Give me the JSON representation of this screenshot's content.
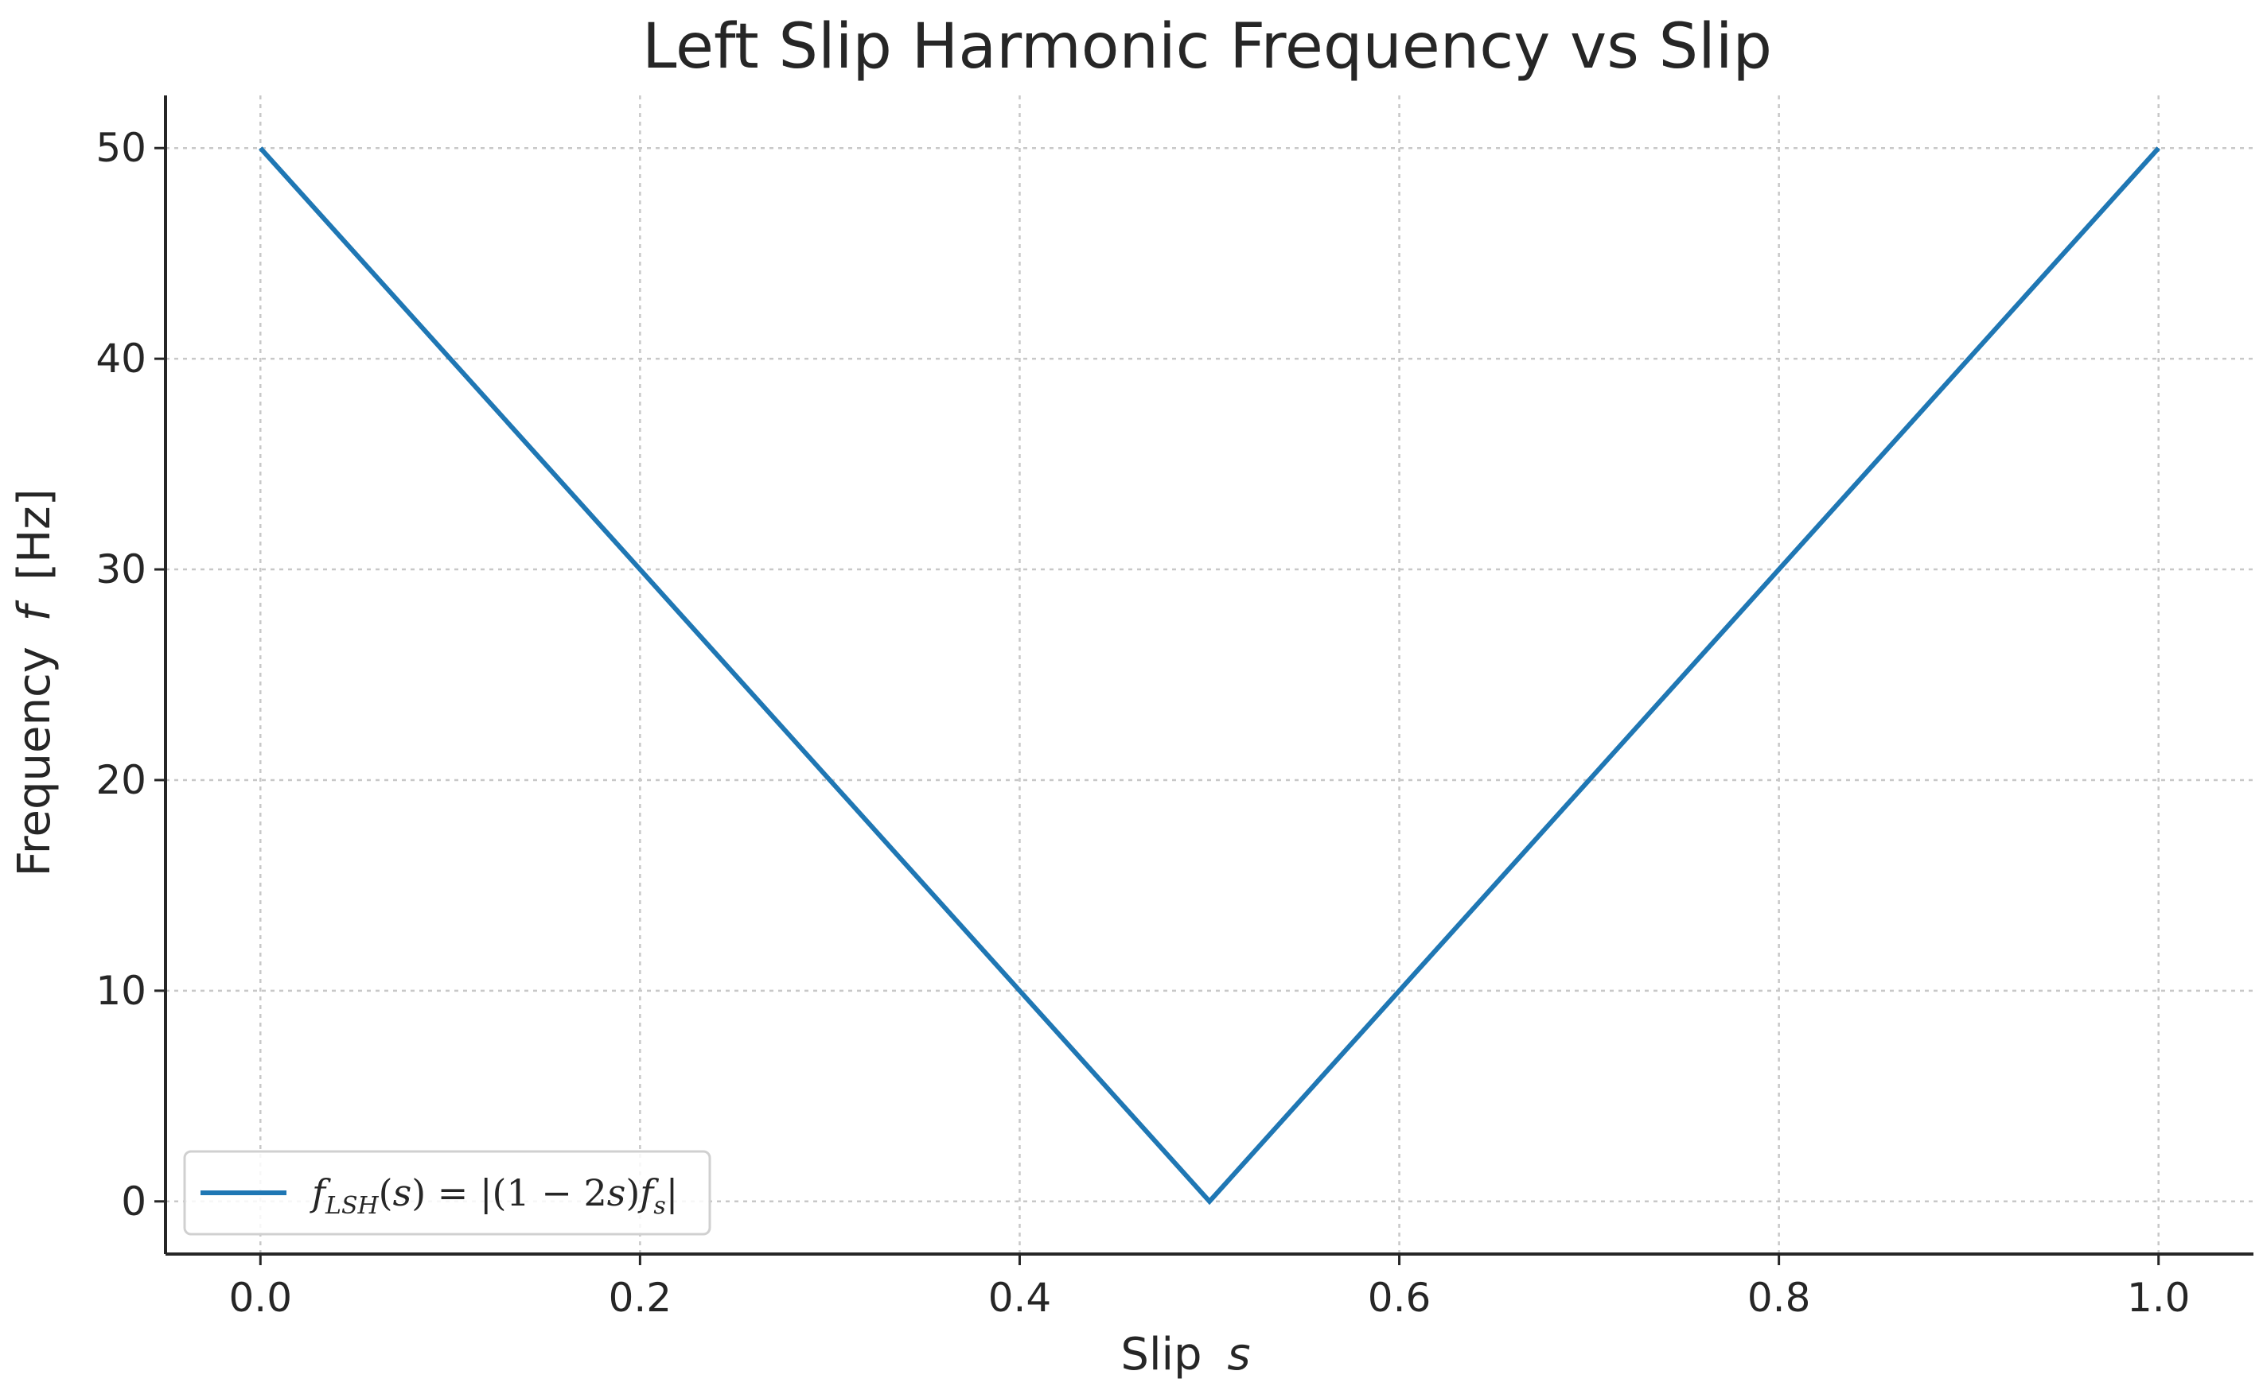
{
  "chart_data": {
    "type": "line",
    "title": "Left Slip Harmonic Frequency vs Slip",
    "xlabel": "Slip",
    "xlabel_symbol": "s",
    "ylabel": "Frequency",
    "ylabel_symbol": "f",
    "ylabel_unit": "[Hz]",
    "xlim": [
      -0.05,
      1.05
    ],
    "ylim": [
      -2.5,
      52.5
    ],
    "xticks": [
      0.0,
      0.2,
      0.4,
      0.6,
      0.8,
      1.0
    ],
    "xtick_labels": [
      "0.0",
      "0.2",
      "0.4",
      "0.6",
      "0.8",
      "1.0"
    ],
    "yticks": [
      0,
      10,
      20,
      30,
      40,
      50
    ],
    "ytick_labels": [
      "0",
      "10",
      "20",
      "30",
      "40",
      "50"
    ],
    "grid": true,
    "legend_position": "lower-left",
    "series": [
      {
        "name": "f_LSH(s) = |(1 − 2s) f_s|",
        "color": "#1f77b4",
        "x": [
          0.0,
          0.1,
          0.2,
          0.3,
          0.4,
          0.5,
          0.6,
          0.7,
          0.8,
          0.9,
          1.0
        ],
        "y": [
          50,
          40,
          30,
          20,
          10,
          0,
          10,
          20,
          30,
          40,
          50
        ]
      }
    ]
  }
}
